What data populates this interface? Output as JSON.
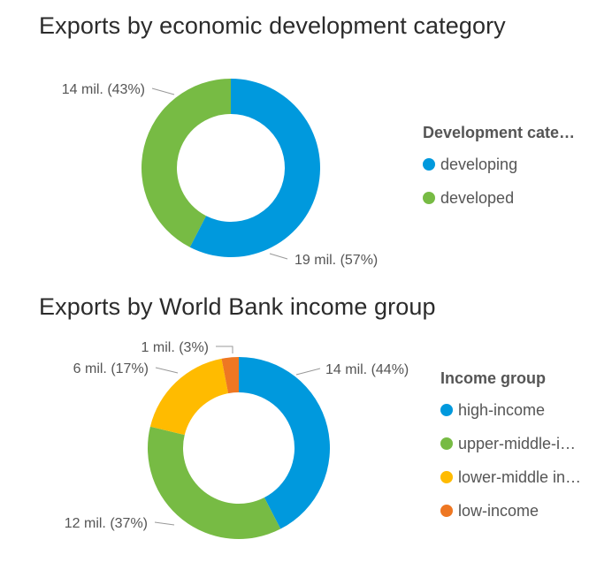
{
  "chart_data": [
    {
      "type": "pie",
      "title": "Exports by economic development category",
      "legend_title": "Development cate…",
      "legend_position": "right",
      "donut": true,
      "slices": [
        {
          "name": "developing",
          "value": 19,
          "label": "19 mil. (57%)",
          "color": "#0099dd"
        },
        {
          "name": "developed",
          "value": 14,
          "label": "14 mil. (43%)",
          "color": "#77bb44"
        }
      ]
    },
    {
      "type": "pie",
      "title": "Exports by World Bank income group",
      "legend_title": "Income group",
      "legend_position": "right",
      "donut": true,
      "slices": [
        {
          "name": "high-income",
          "value": 14,
          "label": "14 mil. (44%)",
          "color": "#0099dd"
        },
        {
          "name": "upper-middle-i…",
          "value": 12,
          "label": "12 mil. (37%)",
          "color": "#77bb44"
        },
        {
          "name": "lower-middle in…",
          "value": 6,
          "label": "6 mil. (17%)",
          "color": "#ffbb00"
        },
        {
          "name": "low-income",
          "value": 1,
          "label": "1 mil. (3%)",
          "color": "#ee7722"
        }
      ]
    }
  ]
}
